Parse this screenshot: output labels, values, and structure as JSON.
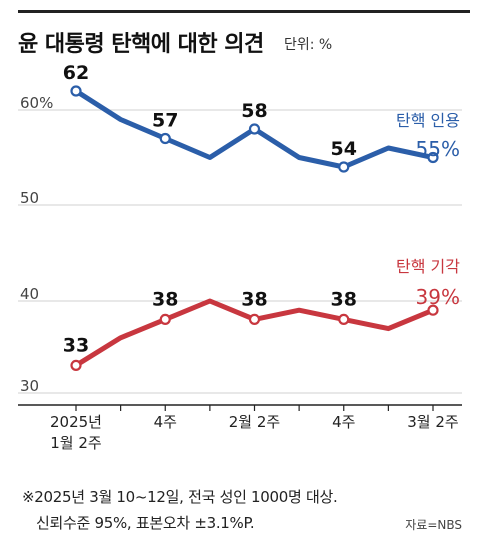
{
  "header": {
    "title": "윤 대통령 탄핵에 대한 의견",
    "unit": "단위: %"
  },
  "footer": {
    "note_line1": "※2025년 3월 10~12일, 전국 성인 1000명 대상.",
    "note_line2": "신뢰수준 95%, 표본오차 ±3.1%P.",
    "source": "자료=NBS"
  },
  "colors": {
    "approve": "#2b5ea9",
    "reject": "#c8373f",
    "grid": "#d0d0d0",
    "axis": "#222222"
  },
  "chart_data": {
    "type": "line",
    "title": "윤 대통령 탄핵에 대한 의견",
    "ylabel": "",
    "xlabel": "",
    "y_break": true,
    "x": [
      "2025년 1월 2주",
      "",
      "4주",
      "",
      "2월 2주",
      "",
      "4주",
      "",
      "3월 2주"
    ],
    "x_tick_labels": [
      {
        "index": 0,
        "lines": [
          "2025년",
          "1월 2주"
        ]
      },
      {
        "index": 2,
        "lines": [
          "4주"
        ]
      },
      {
        "index": 4,
        "lines": [
          "2월 2주"
        ]
      },
      {
        "index": 6,
        "lines": [
          "4주"
        ]
      },
      {
        "index": 8,
        "lines": [
          "3월 2주"
        ]
      }
    ],
    "y_ticks_upper": [
      "60%",
      "50"
    ],
    "y_ticks_lower": [
      "40",
      "30"
    ],
    "upper_range": [
      50,
      60
    ],
    "lower_range": [
      30,
      40
    ],
    "series": [
      {
        "name": "탄핵 인용",
        "values": [
          62,
          59,
          57,
          55,
          58,
          55,
          54,
          56,
          55
        ],
        "labels": [
          {
            "index": 0,
            "text": "62"
          },
          {
            "index": 2,
            "text": "57"
          },
          {
            "index": 4,
            "text": "58"
          },
          {
            "index": 6,
            "text": "54"
          }
        ],
        "end_label": "55%",
        "markers": [
          0,
          2,
          4,
          6,
          8
        ]
      },
      {
        "name": "탄핵 기각",
        "values": [
          33,
          36,
          38,
          40,
          38,
          39,
          38,
          37,
          39
        ],
        "labels": [
          {
            "index": 0,
            "text": "33"
          },
          {
            "index": 2,
            "text": "38"
          },
          {
            "index": 4,
            "text": "38"
          },
          {
            "index": 6,
            "text": "38"
          }
        ],
        "end_label": "39%",
        "markers": [
          0,
          2,
          4,
          6,
          8
        ]
      }
    ],
    "grid": true,
    "legend": "inline-right"
  }
}
